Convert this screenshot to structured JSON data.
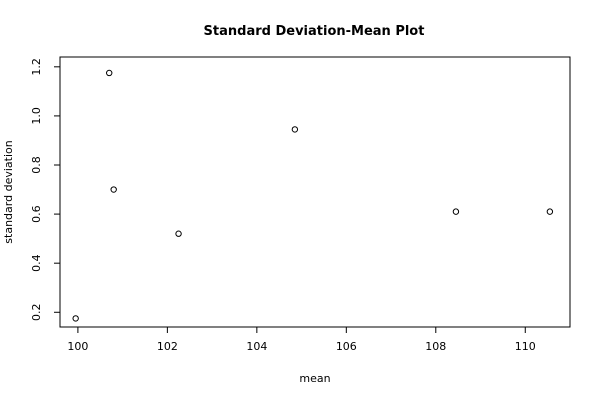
{
  "chart_data": {
    "type": "scatter",
    "title": "Standard Deviation-Mean Plot",
    "xlabel": "mean",
    "ylabel": "standard deviation",
    "xlim": [
      99.6,
      111.0
    ],
    "ylim": [
      0.14,
      1.24
    ],
    "xticks": [
      100,
      102,
      104,
      106,
      108,
      110
    ],
    "xtick_labels": [
      "100",
      "102",
      "104",
      "106",
      "108",
      "110"
    ],
    "yticks": [
      0.2,
      0.4,
      0.6,
      0.8,
      1.0,
      1.2
    ],
    "ytick_labels": [
      "0.2",
      "0.4",
      "0.6",
      "0.8",
      "1.0",
      "1.2"
    ],
    "grid": false,
    "legend": "none",
    "marker": "open-circle",
    "points": [
      {
        "x": 99.95,
        "y": 0.175
      },
      {
        "x": 100.7,
        "y": 1.175
      },
      {
        "x": 100.8,
        "y": 0.7
      },
      {
        "x": 102.25,
        "y": 0.52
      },
      {
        "x": 104.85,
        "y": 0.945
      },
      {
        "x": 108.45,
        "y": 0.61
      },
      {
        "x": 110.55,
        "y": 0.61
      }
    ]
  }
}
